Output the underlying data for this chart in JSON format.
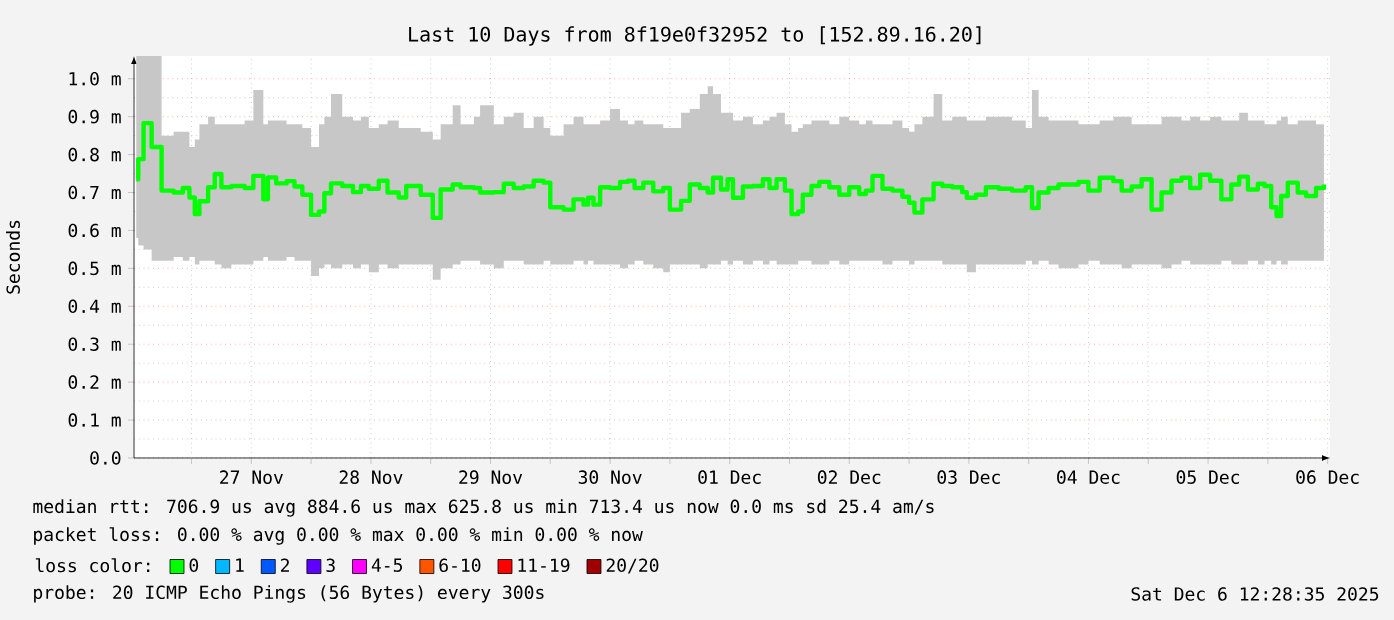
{
  "chart_data": {
    "type": "step",
    "title": "Last 10 Days from 8f19e0f32952 to [152.89.16.20]",
    "ylabel": "Seconds",
    "legend_title": "loss color:",
    "legend": "bottom",
    "grid": true,
    "xlim": [
      "2025-11-26T12:28",
      "2025-12-06T12:28"
    ],
    "xticks": [
      {
        "value": "2025-11-27T00:00",
        "label": null
      },
      {
        "value": "2025-11-27T12:00",
        "label": "27 Nov"
      },
      {
        "value": "2025-11-28T00:00",
        "label": null
      },
      {
        "value": "2025-11-28T12:00",
        "label": "28 Nov"
      },
      {
        "value": "2025-11-29T00:00",
        "label": null
      },
      {
        "value": "2025-11-29T12:00",
        "label": "29 Nov"
      },
      {
        "value": "2025-11-30T00:00",
        "label": null
      },
      {
        "value": "2025-11-30T12:00",
        "label": "30 Nov"
      },
      {
        "value": "2025-12-01T00:00",
        "label": null
      },
      {
        "value": "2025-12-01T12:00",
        "label": "01 Dec"
      },
      {
        "value": "2025-12-02T00:00",
        "label": null
      },
      {
        "value": "2025-12-02T12:00",
        "label": "02 Dec"
      },
      {
        "value": "2025-12-03T00:00",
        "label": null
      },
      {
        "value": "2025-12-03T12:00",
        "label": "03 Dec"
      },
      {
        "value": "2025-12-04T00:00",
        "label": null
      },
      {
        "value": "2025-12-04T12:00",
        "label": "04 Dec"
      },
      {
        "value": "2025-12-05T00:00",
        "label": null
      },
      {
        "value": "2025-12-05T12:00",
        "label": "05 Dec"
      },
      {
        "value": "2025-12-06T00:00",
        "label": null
      },
      {
        "value": "2025-12-06T12:00",
        "label": "06 Dec"
      }
    ],
    "ylim": [
      0,
      1.06
    ],
    "yticks": [
      {
        "value": 0,
        "label": "0.0"
      },
      {
        "value": 0.1,
        "label": "0.1 m"
      },
      {
        "value": 0.2,
        "label": "0.2 m"
      },
      {
        "value": 0.3,
        "label": "0.3 m"
      },
      {
        "value": 0.4,
        "label": "0.4 m"
      },
      {
        "value": 0.5,
        "label": "0.5 m"
      },
      {
        "value": 0.6,
        "label": "0.6 m"
      },
      {
        "value": 0.7,
        "label": "0.7 m"
      },
      {
        "value": 0.8,
        "label": "0.8 m"
      },
      {
        "value": 0.9,
        "label": "0.9 m"
      },
      {
        "value": 1.0,
        "label": "1.0 m"
      }
    ],
    "x": [
      "2025-11-26T12:55",
      "2025-11-26T13:19",
      "2025-11-26T14:23",
      "2025-11-26T16:00",
      "2025-11-26T18:00",
      "2025-11-26T20:25",
      "2025-11-26T22:16",
      "2025-11-26T23:35",
      "2025-11-27T00:40",
      "2025-11-27T01:35",
      "2025-11-27T03:20",
      "2025-11-27T04:40",
      "2025-11-27T06:00",
      "2025-11-27T08:00",
      "2025-11-27T10:40",
      "2025-11-27T12:25",
      "2025-11-27T14:25",
      "2025-11-27T15:20",
      "2025-11-27T17:00",
      "2025-11-27T19:05",
      "2025-11-27T20:40",
      "2025-11-27T22:15",
      "2025-11-28T00:00",
      "2025-11-28T01:35",
      "2025-11-28T02:40",
      "2025-11-28T04:00",
      "2025-11-28T06:15",
      "2025-11-28T08:25",
      "2025-11-28T10:00",
      "2025-11-28T11:35",
      "2025-11-28T13:35",
      "2025-11-28T15:20",
      "2025-11-28T17:35",
      "2025-11-28T19:05",
      "2025-11-28T22:00",
      "2025-11-29T00:25",
      "2025-11-29T02:00",
      "2025-11-29T04:25",
      "2025-11-29T06:00",
      "2025-11-29T08:40",
      "2025-11-29T09:55",
      "2025-11-29T12:40",
      "2025-11-29T14:40",
      "2025-11-29T16:40",
      "2025-11-29T18:40",
      "2025-11-29T20:40",
      "2025-11-29T22:40",
      "2025-11-30T00:00",
      "2025-11-30T02:40",
      "2025-11-30T04:40",
      "2025-11-30T06:40",
      "2025-11-30T07:35",
      "2025-11-30T08:40",
      "2025-11-30T10:00",
      "2025-11-30T12:00",
      "2025-11-30T14:00",
      "2025-11-30T15:35",
      "2025-11-30T16:55",
      "2025-11-30T18:40",
      "2025-11-30T20:40",
      "2025-11-30T22:40",
      "2025-12-01T00:00",
      "2025-12-01T02:15",
      "2025-12-01T04:00",
      "2025-12-01T06:00",
      "2025-12-01T07:35",
      "2025-12-01T08:40",
      "2025-12-01T10:15",
      "2025-12-01T11:35",
      "2025-12-01T12:40",
      "2025-12-01T14:40",
      "2025-12-01T16:40",
      "2025-12-01T18:40",
      "2025-12-01T20:00",
      "2025-12-01T21:25",
      "2025-12-01T23:05",
      "2025-12-02T00:25",
      "2025-12-02T01:45",
      "2025-12-02T02:40",
      "2025-12-02T04:25",
      "2025-12-02T06:00",
      "2025-12-02T08:00",
      "2025-12-02T10:00",
      "2025-12-02T12:00",
      "2025-12-02T14:00",
      "2025-12-02T15:20",
      "2025-12-02T16:40",
      "2025-12-02T18:40",
      "2025-12-02T20:40",
      "2025-12-02T22:40",
      "2025-12-03T00:00",
      "2025-12-03T01:05",
      "2025-12-03T02:40",
      "2025-12-03T04:55",
      "2025-12-03T06:40",
      "2025-12-03T08:40",
      "2025-12-03T10:40",
      "2025-12-03T11:35",
      "2025-12-03T13:25",
      "2025-12-03T15:25",
      "2025-12-03T18:00",
      "2025-12-03T20:40",
      "2025-12-03T23:25",
      "2025-12-04T00:40",
      "2025-12-04T02:00",
      "2025-12-04T04:00",
      "2025-12-04T06:00",
      "2025-12-04T10:00",
      "2025-12-04T12:00",
      "2025-12-04T14:15",
      "2025-12-04T17:00",
      "2025-12-04T18:40",
      "2025-12-04T20:40",
      "2025-12-04T22:40",
      "2025-12-05T00:40",
      "2025-12-05T02:40",
      "2025-12-05T04:40",
      "2025-12-05T06:40",
      "2025-12-05T08:25",
      "2025-12-05T10:25",
      "2025-12-05T12:25",
      "2025-12-05T14:40",
      "2025-12-05T16:40",
      "2025-12-05T18:15",
      "2025-12-05T20:00",
      "2025-12-05T22:00",
      "2025-12-05T23:20",
      "2025-12-06T00:40",
      "2025-12-06T01:45",
      "2025-12-06T02:40",
      "2025-12-06T04:00",
      "2025-12-06T06:00",
      "2025-12-06T07:40",
      "2025-12-06T09:40",
      "2025-12-06T11:15"
    ],
    "series": [
      {
        "name": "0",
        "color": "#00ff00",
        "values": [
          0.735,
          0.788,
          0.883,
          0.82,
          0.705,
          0.7,
          0.712,
          0.687,
          0.643,
          0.677,
          0.714,
          0.749,
          0.714,
          0.717,
          0.712,
          0.744,
          0.682,
          0.74,
          0.724,
          0.73,
          0.716,
          0.694,
          0.641,
          0.65,
          0.698,
          0.724,
          0.717,
          0.701,
          0.717,
          0.71,
          0.731,
          0.7,
          0.687,
          0.717,
          0.694,
          0.633,
          0.708,
          0.721,
          0.714,
          0.712,
          0.7,
          0.701,
          0.723,
          0.712,
          0.716,
          0.731,
          0.726,
          0.661,
          0.655,
          0.682,
          0.668,
          0.686,
          0.668,
          0.714,
          0.712,
          0.728,
          0.731,
          0.712,
          0.726,
          0.703,
          0.712,
          0.655,
          0.678,
          0.721,
          0.712,
          0.7,
          0.739,
          0.708,
          0.735,
          0.686,
          0.716,
          0.717,
          0.735,
          0.712,
          0.735,
          0.705,
          0.643,
          0.65,
          0.694,
          0.717,
          0.728,
          0.714,
          0.694,
          0.714,
          0.696,
          0.705,
          0.744,
          0.71,
          0.705,
          0.689,
          0.673,
          0.647,
          0.682,
          0.723,
          0.717,
          0.714,
          0.701,
          0.686,
          0.694,
          0.714,
          0.71,
          0.705,
          0.714,
          0.659,
          0.7,
          0.712,
          0.721,
          0.728,
          0.705,
          0.739,
          0.73,
          0.705,
          0.716,
          0.735,
          0.655,
          0.7,
          0.731,
          0.739,
          0.712,
          0.747,
          0.731,
          0.682,
          0.721,
          0.742,
          0.708,
          0.723,
          0.717,
          0.661,
          0.638,
          0.691,
          0.726,
          0.7,
          0.691,
          0.712,
          0.721
        ],
        "lower": [
          0.58,
          0.56,
          0.55,
          0.52,
          0.52,
          0.53,
          0.52,
          0.53,
          0.51,
          0.52,
          0.52,
          0.51,
          0.5,
          0.51,
          0.51,
          0.52,
          0.53,
          0.52,
          0.52,
          0.53,
          0.52,
          0.52,
          0.48,
          0.5,
          0.51,
          0.5,
          0.51,
          0.5,
          0.51,
          0.49,
          0.51,
          0.5,
          0.51,
          0.51,
          0.51,
          0.47,
          0.5,
          0.51,
          0.52,
          0.52,
          0.51,
          0.5,
          0.52,
          0.52,
          0.51,
          0.51,
          0.52,
          0.51,
          0.51,
          0.52,
          0.51,
          0.52,
          0.51,
          0.51,
          0.51,
          0.5,
          0.51,
          0.52,
          0.51,
          0.5,
          0.49,
          0.51,
          0.51,
          0.51,
          0.5,
          0.51,
          0.51,
          0.52,
          0.51,
          0.52,
          0.51,
          0.52,
          0.51,
          0.52,
          0.51,
          0.51,
          0.51,
          0.52,
          0.52,
          0.51,
          0.51,
          0.52,
          0.51,
          0.52,
          0.52,
          0.52,
          0.52,
          0.51,
          0.52,
          0.52,
          0.51,
          0.52,
          0.52,
          0.52,
          0.51,
          0.51,
          0.51,
          0.49,
          0.51,
          0.51,
          0.51,
          0.51,
          0.52,
          0.51,
          0.52,
          0.51,
          0.5,
          0.51,
          0.52,
          0.51,
          0.51,
          0.5,
          0.51,
          0.51,
          0.51,
          0.5,
          0.51,
          0.52,
          0.51,
          0.51,
          0.51,
          0.52,
          0.51,
          0.51,
          0.52,
          0.51,
          0.52,
          0.51,
          0.52,
          0.51,
          0.52,
          0.52,
          0.52,
          0.52,
          0.52
        ],
        "upper": [
          1.06,
          1.06,
          1.06,
          1.06,
          0.85,
          0.86,
          0.86,
          0.82,
          0.84,
          0.88,
          0.9,
          0.88,
          0.88,
          0.88,
          0.89,
          0.97,
          0.88,
          0.89,
          0.89,
          0.88,
          0.88,
          0.87,
          0.82,
          0.88,
          0.9,
          0.96,
          0.9,
          0.89,
          0.9,
          0.87,
          0.88,
          0.89,
          0.87,
          0.87,
          0.86,
          0.84,
          0.88,
          0.93,
          0.88,
          0.9,
          0.93,
          0.88,
          0.9,
          0.91,
          0.87,
          0.9,
          0.87,
          0.85,
          0.88,
          0.9,
          0.88,
          0.88,
          0.88,
          0.89,
          0.92,
          0.89,
          0.88,
          0.89,
          0.88,
          0.88,
          0.87,
          0.87,
          0.91,
          0.92,
          0.96,
          0.98,
          0.96,
          0.91,
          0.91,
          0.89,
          0.9,
          0.88,
          0.89,
          0.9,
          0.91,
          0.88,
          0.86,
          0.87,
          0.88,
          0.89,
          0.89,
          0.88,
          0.9,
          0.89,
          0.88,
          0.89,
          0.88,
          0.88,
          0.89,
          0.87,
          0.86,
          0.88,
          0.9,
          0.96,
          0.89,
          0.9,
          0.9,
          0.89,
          0.89,
          0.9,
          0.9,
          0.89,
          0.87,
          0.97,
          0.9,
          0.89,
          0.89,
          0.88,
          0.88,
          0.89,
          0.9,
          0.9,
          0.88,
          0.88,
          0.88,
          0.9,
          0.9,
          0.89,
          0.9,
          0.89,
          0.9,
          0.89,
          0.89,
          0.91,
          0.89,
          0.89,
          0.88,
          0.88,
          0.89,
          0.9,
          0.88,
          0.89,
          0.89,
          0.88,
          0.88
        ]
      },
      {
        "name": "1",
        "color": "#00b8ff",
        "values": [
          null,
          null,
          null,
          null,
          null,
          null,
          null,
          null,
          null,
          null,
          null,
          null,
          null,
          null,
          null,
          null,
          null,
          null,
          null,
          null,
          null,
          null,
          null,
          null,
          null,
          null,
          null,
          null,
          null,
          null,
          null,
          null,
          null,
          null,
          null,
          null,
          null,
          null,
          null,
          null,
          null,
          null,
          null,
          null,
          null,
          null,
          null,
          null,
          null,
          null,
          null,
          null,
          null,
          null,
          null,
          null,
          null,
          null,
          null,
          null,
          null,
          null,
          null,
          null,
          null,
          null,
          null,
          null,
          null,
          null,
          null,
          null,
          null,
          null,
          null,
          null,
          null,
          null,
          null,
          null,
          null,
          null,
          null,
          null,
          null,
          null,
          null,
          null,
          null,
          null,
          null,
          null,
          null,
          null,
          null,
          null,
          null,
          null,
          null,
          null,
          null,
          null,
          null,
          null,
          null,
          null,
          null,
          null,
          null,
          null,
          null,
          null,
          null,
          null,
          null,
          null,
          null,
          null,
          null,
          null,
          null,
          null,
          null,
          null,
          null,
          null,
          null,
          null,
          null,
          null,
          null,
          null,
          null,
          null,
          null
        ]
      },
      {
        "name": "2",
        "color": "#0059ff",
        "values": [
          null,
          null,
          null,
          null,
          null,
          null,
          null,
          null,
          null,
          null,
          null,
          null,
          null,
          null,
          null,
          null,
          null,
          null,
          null,
          null,
          null,
          null,
          null,
          null,
          null,
          null,
          null,
          null,
          null,
          null,
          null,
          null,
          null,
          null,
          null,
          null,
          null,
          null,
          null,
          null,
          null,
          null,
          null,
          null,
          null,
          null,
          null,
          null,
          null,
          null,
          null,
          null,
          null,
          null,
          null,
          null,
          null,
          null,
          null,
          null,
          null,
          null,
          null,
          null,
          null,
          null,
          null,
          null,
          null,
          null,
          null,
          null,
          null,
          null,
          null,
          null,
          null,
          null,
          null,
          null,
          null,
          null,
          null,
          null,
          null,
          null,
          null,
          null,
          null,
          null,
          null,
          null,
          null,
          null,
          null,
          null,
          null,
          null,
          null,
          null,
          null,
          null,
          null,
          null,
          null,
          null,
          null,
          null,
          null,
          null,
          null,
          null,
          null,
          null,
          null,
          null,
          null,
          null,
          null,
          null,
          null,
          null,
          null,
          null,
          null,
          null,
          null,
          null,
          null,
          null,
          null,
          null,
          null,
          null,
          null
        ]
      },
      {
        "name": "3",
        "color": "#5e00ff",
        "values": [
          null,
          null,
          null,
          null,
          null,
          null,
          null,
          null,
          null,
          null,
          null,
          null,
          null,
          null,
          null,
          null,
          null,
          null,
          null,
          null,
          null,
          null,
          null,
          null,
          null,
          null,
          null,
          null,
          null,
          null,
          null,
          null,
          null,
          null,
          null,
          null,
          null,
          null,
          null,
          null,
          null,
          null,
          null,
          null,
          null,
          null,
          null,
          null,
          null,
          null,
          null,
          null,
          null,
          null,
          null,
          null,
          null,
          null,
          null,
          null,
          null,
          null,
          null,
          null,
          null,
          null,
          null,
          null,
          null,
          null,
          null,
          null,
          null,
          null,
          null,
          null,
          null,
          null,
          null,
          null,
          null,
          null,
          null,
          null,
          null,
          null,
          null,
          null,
          null,
          null,
          null,
          null,
          null,
          null,
          null,
          null,
          null,
          null,
          null,
          null,
          null,
          null,
          null,
          null,
          null,
          null,
          null,
          null,
          null,
          null,
          null,
          null,
          null,
          null,
          null,
          null,
          null,
          null,
          null,
          null,
          null,
          null,
          null,
          null,
          null,
          null,
          null,
          null,
          null,
          null,
          null,
          null,
          null,
          null,
          null
        ]
      },
      {
        "name": "4-5",
        "color": "#ff00ff",
        "values": [
          null,
          null,
          null,
          null,
          null,
          null,
          null,
          null,
          null,
          null,
          null,
          null,
          null,
          null,
          null,
          null,
          null,
          null,
          null,
          null,
          null,
          null,
          null,
          null,
          null,
          null,
          null,
          null,
          null,
          null,
          null,
          null,
          null,
          null,
          null,
          null,
          null,
          null,
          null,
          null,
          null,
          null,
          null,
          null,
          null,
          null,
          null,
          null,
          null,
          null,
          null,
          null,
          null,
          null,
          null,
          null,
          null,
          null,
          null,
          null,
          null,
          null,
          null,
          null,
          null,
          null,
          null,
          null,
          null,
          null,
          null,
          null,
          null,
          null,
          null,
          null,
          null,
          null,
          null,
          null,
          null,
          null,
          null,
          null,
          null,
          null,
          null,
          null,
          null,
          null,
          null,
          null,
          null,
          null,
          null,
          null,
          null,
          null,
          null,
          null,
          null,
          null,
          null,
          null,
          null,
          null,
          null,
          null,
          null,
          null,
          null,
          null,
          null,
          null,
          null,
          null,
          null,
          null,
          null,
          null,
          null,
          null,
          null,
          null,
          null,
          null,
          null,
          null,
          null,
          null,
          null,
          null,
          null,
          null,
          null
        ]
      },
      {
        "name": "6-10",
        "color": "#ff5500",
        "values": [
          null,
          null,
          null,
          null,
          null,
          null,
          null,
          null,
          null,
          null,
          null,
          null,
          null,
          null,
          null,
          null,
          null,
          null,
          null,
          null,
          null,
          null,
          null,
          null,
          null,
          null,
          null,
          null,
          null,
          null,
          null,
          null,
          null,
          null,
          null,
          null,
          null,
          null,
          null,
          null,
          null,
          null,
          null,
          null,
          null,
          null,
          null,
          null,
          null,
          null,
          null,
          null,
          null,
          null,
          null,
          null,
          null,
          null,
          null,
          null,
          null,
          null,
          null,
          null,
          null,
          null,
          null,
          null,
          null,
          null,
          null,
          null,
          null,
          null,
          null,
          null,
          null,
          null,
          null,
          null,
          null,
          null,
          null,
          null,
          null,
          null,
          null,
          null,
          null,
          null,
          null,
          null,
          null,
          null,
          null,
          null,
          null,
          null,
          null,
          null,
          null,
          null,
          null,
          null,
          null,
          null,
          null,
          null,
          null,
          null,
          null,
          null,
          null,
          null,
          null,
          null,
          null,
          null,
          null,
          null,
          null,
          null,
          null,
          null,
          null,
          null,
          null,
          null,
          null,
          null,
          null,
          null,
          null,
          null,
          null
        ]
      },
      {
        "name": "11-19",
        "color": "#ff0000",
        "values": [
          null,
          null,
          null,
          null,
          null,
          null,
          null,
          null,
          null,
          null,
          null,
          null,
          null,
          null,
          null,
          null,
          null,
          null,
          null,
          null,
          null,
          null,
          null,
          null,
          null,
          null,
          null,
          null,
          null,
          null,
          null,
          null,
          null,
          null,
          null,
          null,
          null,
          null,
          null,
          null,
          null,
          null,
          null,
          null,
          null,
          null,
          null,
          null,
          null,
          null,
          null,
          null,
          null,
          null,
          null,
          null,
          null,
          null,
          null,
          null,
          null,
          null,
          null,
          null,
          null,
          null,
          null,
          null,
          null,
          null,
          null,
          null,
          null,
          null,
          null,
          null,
          null,
          null,
          null,
          null,
          null,
          null,
          null,
          null,
          null,
          null,
          null,
          null,
          null,
          null,
          null,
          null,
          null,
          null,
          null,
          null,
          null,
          null,
          null,
          null,
          null,
          null,
          null,
          null,
          null,
          null,
          null,
          null,
          null,
          null,
          null,
          null,
          null,
          null,
          null,
          null,
          null,
          null,
          null,
          null,
          null,
          null,
          null,
          null,
          null,
          null,
          null,
          null,
          null,
          null,
          null,
          null,
          null,
          null,
          null
        ]
      },
      {
        "name": "20/20",
        "color": "#a10000",
        "values": [
          null,
          null,
          null,
          null,
          null,
          null,
          null,
          null,
          null,
          null,
          null,
          null,
          null,
          null,
          null,
          null,
          null,
          null,
          null,
          null,
          null,
          null,
          null,
          null,
          null,
          null,
          null,
          null,
          null,
          null,
          null,
          null,
          null,
          null,
          null,
          null,
          null,
          null,
          null,
          null,
          null,
          null,
          null,
          null,
          null,
          null,
          null,
          null,
          null,
          null,
          null,
          null,
          null,
          null,
          null,
          null,
          null,
          null,
          null,
          null,
          null,
          null,
          null,
          null,
          null,
          null,
          null,
          null,
          null,
          null,
          null,
          null,
          null,
          null,
          null,
          null,
          null,
          null,
          null,
          null,
          null,
          null,
          null,
          null,
          null,
          null,
          null,
          null,
          null,
          null,
          null,
          null,
          null,
          null,
          null,
          null,
          null,
          null,
          null,
          null,
          null,
          null,
          null,
          null,
          null,
          null,
          null,
          null,
          null,
          null,
          null,
          null,
          null,
          null,
          null,
          null,
          null,
          null,
          null,
          null,
          null,
          null,
          null,
          null,
          null,
          null,
          null,
          null,
          null,
          null,
          null,
          null,
          null,
          null,
          null
        ]
      }
    ],
    "annotations": [
      "median rtt:  706.9 us avg  884.6 us max  625.8 us min  713.4 us now  0.0 ms sd  25.4 am/s",
      "packet loss: 0.00 % avg  0.00 % max  0.00 % min  0.00 % now",
      "probe: 20 ICMP Echo Pings (56 Bytes) every 300s",
      "Sat Dec 6 12:28:35 2025"
    ]
  }
}
